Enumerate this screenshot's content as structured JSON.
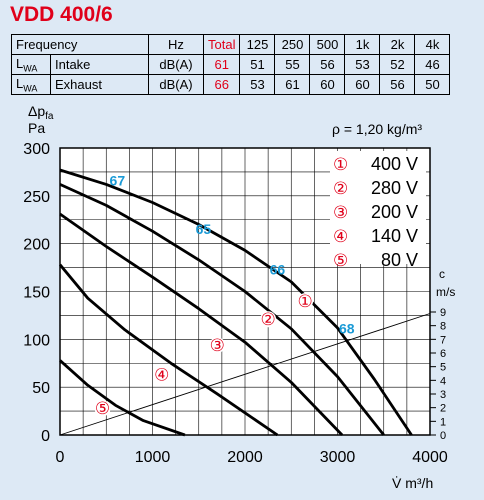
{
  "title": "VDD 400/6",
  "table": {
    "header": [
      "Frequency",
      "Hz",
      "Total",
      "125",
      "250",
      "500",
      "1k",
      "2k",
      "4k"
    ],
    "rows": [
      {
        "symbol": "L",
        "sub": "WA",
        "name": "Intake",
        "unit": "dB(A)",
        "total": "61",
        "values": [
          "51",
          "55",
          "56",
          "53",
          "52",
          "46"
        ]
      },
      {
        "symbol": "L",
        "sub": "WA",
        "name": "Exhaust",
        "unit": "dB(A)",
        "total": "66",
        "values": [
          "53",
          "61",
          "60",
          "60",
          "56",
          "50"
        ]
      }
    ]
  },
  "colors": {
    "title": "#e0001a",
    "efficiency": "#1a9ad6",
    "marker": "#e0001a",
    "panel": "#dde9f5"
  },
  "chart_data": {
    "type": "line",
    "ylabel_line1": "Δp",
    "ylabel_sub": "fa",
    "ylabel_line2": "Pa",
    "xlabel": "V̇ m³/h",
    "density": "ρ = 1,20 kg/m³",
    "xlim": [
      0,
      4000
    ],
    "ylim": [
      0,
      300
    ],
    "x_ticks": [
      0,
      1000,
      2000,
      3000,
      4000
    ],
    "y_ticks": [
      0,
      50,
      100,
      150,
      200,
      250,
      300
    ],
    "grid": true,
    "series": [
      {
        "marker": "①",
        "name": "400 V",
        "points": [
          [
            0,
            277
          ],
          [
            500,
            262
          ],
          [
            1000,
            243
          ],
          [
            1500,
            220
          ],
          [
            2000,
            193
          ],
          [
            2500,
            160
          ],
          [
            3000,
            112
          ],
          [
            3400,
            58
          ],
          [
            3800,
            0
          ]
        ]
      },
      {
        "marker": "②",
        "name": "280 V",
        "points": [
          [
            0,
            262
          ],
          [
            500,
            240
          ],
          [
            1000,
            213
          ],
          [
            1500,
            183
          ],
          [
            2000,
            150
          ],
          [
            2500,
            111
          ],
          [
            3000,
            61
          ],
          [
            3500,
            0
          ]
        ]
      },
      {
        "marker": "③",
        "name": "200 V",
        "points": [
          [
            0,
            231
          ],
          [
            500,
            197
          ],
          [
            1000,
            165
          ],
          [
            1500,
            132
          ],
          [
            2000,
            97
          ],
          [
            2500,
            55
          ],
          [
            3050,
            0
          ]
        ]
      },
      {
        "marker": "④",
        "name": "140 V",
        "points": [
          [
            0,
            178
          ],
          [
            300,
            143
          ],
          [
            700,
            110
          ],
          [
            1200,
            75
          ],
          [
            1700,
            43
          ],
          [
            2350,
            0
          ]
        ]
      },
      {
        "marker": "⑤",
        "name": "80 V",
        "points": [
          [
            0,
            78
          ],
          [
            300,
            52
          ],
          [
            600,
            31
          ],
          [
            900,
            15
          ],
          [
            1350,
            0
          ]
        ]
      }
    ],
    "system_line": {
      "label": "c",
      "unit": "m/s",
      "ticks": [
        "0",
        "1",
        "2",
        "3",
        "4",
        "5",
        "6",
        "7",
        "8",
        "9"
      ],
      "points": [
        [
          0,
          0
        ],
        [
          4000,
          127
        ]
      ]
    },
    "efficiency_labels": [
      {
        "text": "67",
        "x": 620,
        "y": 261
      },
      {
        "text": "65",
        "x": 1550,
        "y": 210
      },
      {
        "text": "66",
        "x": 2350,
        "y": 168
      },
      {
        "text": "68",
        "x": 3100,
        "y": 106
      }
    ],
    "marker_points": [
      {
        "marker": "①",
        "x": 2650,
        "y": 140
      },
      {
        "marker": "②",
        "x": 2250,
        "y": 121
      },
      {
        "marker": "③",
        "x": 1700,
        "y": 94
      },
      {
        "marker": "④",
        "x": 1100,
        "y": 63
      },
      {
        "marker": "⑤",
        "x": 460,
        "y": 28
      }
    ]
  }
}
